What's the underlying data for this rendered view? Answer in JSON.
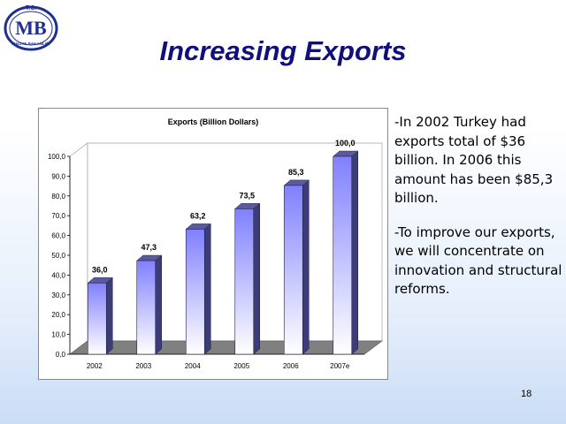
{
  "slide": {
    "title": "Increasing Exports",
    "page_number": "18",
    "paragraphs": [
      "-In 2002 Turkey had exports total of $36 billion. In 2006 this amount has been $85,3 billion.",
      "-To improve our exports, we will concentrate on innovation and structural reforms."
    ]
  },
  "logo": {
    "top_text": "T.C.",
    "letters": "MB",
    "ring_text": "MALİYE BAKANLIĞI",
    "color": "#1f2f8f"
  },
  "chart_data": {
    "type": "bar",
    "title": "Exports (Billion Dollars)",
    "categories": [
      "2002",
      "2003",
      "2004",
      "2005",
      "2006",
      "2007e"
    ],
    "values": [
      36.0,
      47.3,
      63.2,
      73.5,
      85.3,
      100.0
    ],
    "value_labels": [
      "36,0",
      "47,3",
      "63,2",
      "73,5",
      "85,3",
      "100,0"
    ],
    "ylim": [
      0,
      100
    ],
    "y_ticks": [
      "0,0",
      "10,0",
      "20,0",
      "30,0",
      "40,0",
      "50,0",
      "60,0",
      "70,0",
      "80,0",
      "90,0",
      "100,0"
    ],
    "grid": false,
    "legend": "none",
    "colors": {
      "bar_top": "#8080ff",
      "bar_bottom": "#ffffff",
      "bar_side": "#3c3c78",
      "bar_cap": "#5a5aa0",
      "floor": "#808080"
    }
  }
}
